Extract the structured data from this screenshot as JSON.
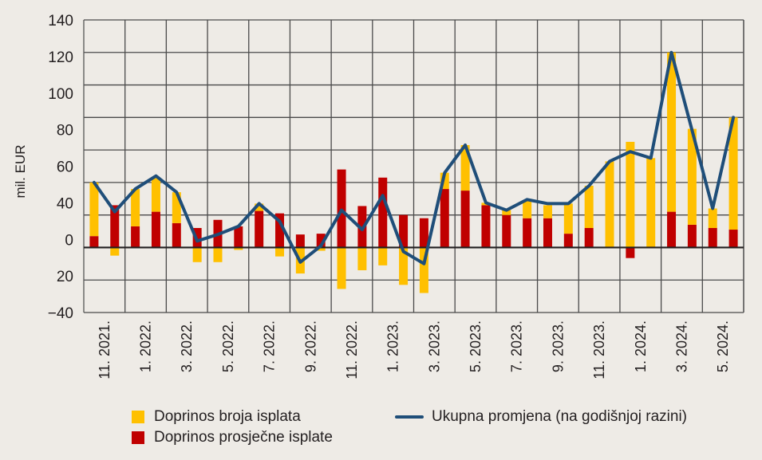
{
  "colors": {
    "count_contribution": "#FFC000",
    "average_contribution": "#C00000",
    "total_change": "#1F4E79",
    "grid": "#4A4A4A",
    "zero_line": "#231F20"
  },
  "chart_data": {
    "type": "bar",
    "subtype": "stacked bar with line overlay",
    "title": "",
    "xlabel": "",
    "ylabel": "mil. EUR",
    "ylim": [
      -40,
      140
    ],
    "y_gridlines_every": 20,
    "y_tick_labels": [
      "140",
      "120",
      "100",
      "80",
      "60",
      "40",
      "0",
      "20",
      "−40"
    ],
    "grid": true,
    "legend_position": "bottom",
    "categories": [
      "11.2021",
      "12.2021",
      "1.2022",
      "2.2022",
      "3.2022",
      "4.2022",
      "5.2022",
      "6.2022",
      "7.2022",
      "8.2022",
      "9.2022",
      "10.2022",
      "11.2022",
      "12.2022",
      "1.2023",
      "2.2023",
      "3.2023",
      "4.2023",
      "5.2023",
      "6.2023",
      "7.2023",
      "8.2023",
      "9.2023",
      "10.2023",
      "11.2023",
      "12.2023",
      "1.2024",
      "2.2024",
      "3.2024",
      "4.2024",
      "5.2024",
      "6.2024"
    ],
    "x_tick_labels": [
      "11. 2021.",
      "1. 2022.",
      "3. 2022.",
      "5. 2022.",
      "7. 2022.",
      "9. 2022.",
      "11. 2022.",
      "1. 2023.",
      "3. 2023.",
      "5. 2023.",
      "7. 2023.",
      "9. 2023.",
      "11. 2023.",
      "1. 2024.",
      "3. 2024.",
      "5. 2024."
    ],
    "series": [
      {
        "name": "Doprinos prosječne isplate",
        "type": "bar",
        "color_key": "average_contribution",
        "values": [
          7,
          26,
          13,
          22,
          15,
          12,
          17,
          13,
          22.5,
          21,
          8,
          8.5,
          48,
          25.5,
          43,
          20,
          18,
          36,
          35,
          26,
          20,
          18,
          18,
          8.5,
          12,
          0,
          -6.5,
          0,
          22,
          14,
          12,
          11
        ]
      },
      {
        "name": "Doprinos broja isplata",
        "type": "bar",
        "color_key": "count_contribution",
        "values": [
          33,
          -5,
          23,
          21,
          19,
          -9,
          -9,
          -1.5,
          4.5,
          -5.5,
          -16,
          -2,
          -25.5,
          -14,
          -11,
          -23,
          -28,
          10,
          28,
          1.5,
          3,
          10.5,
          8,
          18.5,
          26,
          53,
          65,
          55,
          98,
          59,
          12,
          69
        ]
      },
      {
        "name": "Ukupna promjena (na godišnjoj razini)",
        "type": "line",
        "color_key": "total_change",
        "values": [
          40,
          22,
          36,
          44,
          34,
          4,
          8,
          13,
          27,
          16,
          -9,
          1,
          23,
          11,
          32,
          -2.5,
          -10,
          46,
          63,
          27.5,
          23,
          29.5,
          27,
          27,
          38,
          53,
          59,
          55,
          120,
          72,
          24,
          80
        ]
      }
    ]
  },
  "legend": {
    "items": [
      {
        "label": "Doprinos broja isplata",
        "color_key": "count_contribution",
        "kind": "square"
      },
      {
        "label": "Doprinos prosječne isplate",
        "color_key": "average_contribution",
        "kind": "square"
      },
      {
        "label": "Ukupna promjena (na godišnjoj razini)",
        "color_key": "total_change",
        "kind": "line"
      }
    ]
  }
}
